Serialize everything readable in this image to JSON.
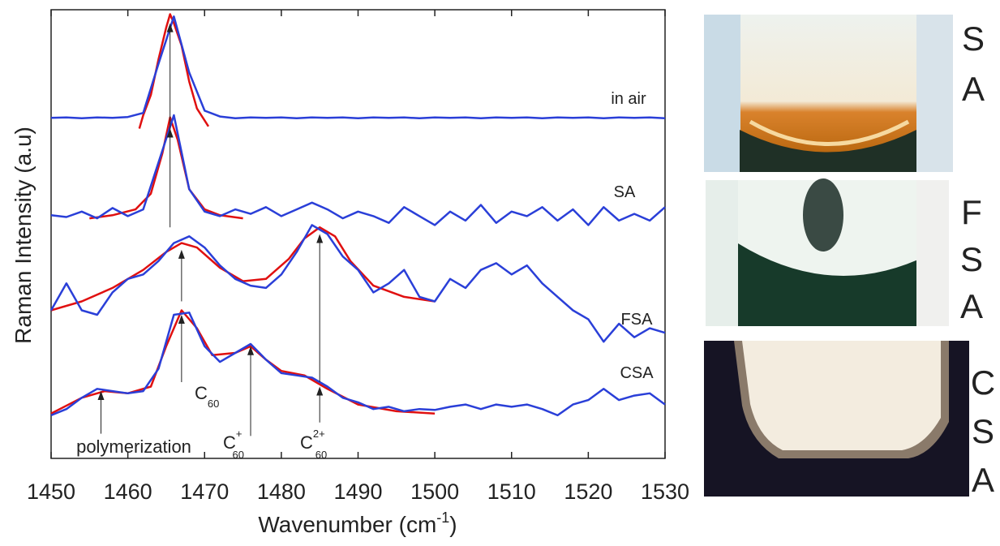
{
  "chart_data": {
    "type": "line",
    "y_label": "Raman Intensity (a.u)",
    "x_label": [
      "Wavenumber (cm",
      "-1",
      ")"
    ],
    "xlim": [
      1450,
      1530
    ],
    "ylim": [
      0,
      100
    ],
    "xticks": [
      1450,
      1460,
      1470,
      1480,
      1490,
      1500,
      1510,
      1520,
      1530
    ],
    "series": [
      {
        "name": "in air",
        "color": "#2a3fd8",
        "x": [
          1450,
          1452,
          1454,
          1456,
          1458,
          1460,
          1462,
          1464,
          1466,
          1468,
          1470,
          1472,
          1474,
          1476,
          1478,
          1480,
          1482,
          1484,
          1486,
          1488,
          1490,
          1492,
          1494,
          1496,
          1498,
          1500,
          1502,
          1504,
          1506,
          1508,
          1510,
          1512,
          1514,
          1516,
          1518,
          1520,
          1522,
          1524,
          1526,
          1528,
          1530
        ],
        "values": [
          75.9,
          76.0,
          75.8,
          76.0,
          75.9,
          76.1,
          77.0,
          88,
          98.5,
          86,
          77.5,
          76.2,
          75.8,
          76.0,
          75.9,
          76.0,
          75.8,
          76.0,
          75.9,
          76.0,
          75.8,
          76.0,
          75.9,
          76.0,
          75.8,
          76.0,
          75.9,
          76.0,
          75.8,
          76.0,
          75.9,
          76.0,
          75.8,
          76.0,
          75.9,
          76.0,
          75.8,
          76.0,
          75.9,
          76.0,
          75.8
        ],
        "fit": {
          "color": "#e01010",
          "x": [
            1461.5,
            1462,
            1463,
            1464,
            1465,
            1465.5,
            1466,
            1467,
            1468,
            1469,
            1470.5
          ],
          "values": [
            73.5,
            76.5,
            81,
            89,
            96,
            99,
            97,
            92,
            84,
            78,
            74
          ]
        }
      },
      {
        "name": "SA",
        "color": "#2a3fd8",
        "x": [
          1450,
          1452,
          1454,
          1456,
          1458,
          1460,
          1462,
          1464,
          1466,
          1468,
          1470,
          1472,
          1474,
          1476,
          1478,
          1480,
          1482,
          1484,
          1486,
          1488,
          1490,
          1492,
          1494,
          1496,
          1498,
          1500,
          1502,
          1504,
          1506,
          1508,
          1510,
          1512,
          1514,
          1516,
          1518,
          1520,
          1522,
          1524,
          1526,
          1528,
          1530
        ],
        "values": [
          54.2,
          53.8,
          55,
          53.5,
          55.8,
          54,
          55.5,
          66,
          76.5,
          60,
          55,
          54,
          55.5,
          54.5,
          56,
          54,
          55.5,
          57,
          55.5,
          53.5,
          55,
          54,
          52.5,
          56,
          54,
          52,
          55,
          53,
          56.5,
          52.5,
          55,
          54,
          56,
          53,
          55.5,
          52,
          56,
          53,
          54.5,
          53,
          56
        ],
        "fit": {
          "color": "#e01010",
          "x": [
            1455,
            1458,
            1461,
            1463,
            1464.5,
            1465.5,
            1466.5,
            1468,
            1470,
            1472,
            1475
          ],
          "values": [
            53.5,
            54.2,
            55.5,
            59,
            68,
            76,
            71,
            60,
            55.5,
            54.2,
            53.5
          ]
        }
      },
      {
        "name": "FSA",
        "color": "#2a3fd8",
        "x": [
          1450,
          1452,
          1454,
          1456,
          1458,
          1460,
          1462,
          1464,
          1466,
          1468,
          1470,
          1472,
          1474,
          1476,
          1478,
          1480,
          1482,
          1484,
          1486,
          1488,
          1490,
          1492,
          1494,
          1496,
          1498,
          1500,
          1502,
          1504,
          1506,
          1508,
          1510,
          1512,
          1514,
          1516,
          1518,
          1520,
          1522,
          1524,
          1526,
          1528,
          1530
        ],
        "values": [
          33,
          39,
          33,
          32,
          37,
          40,
          41,
          44,
          48,
          49.5,
          47,
          43,
          40,
          38.5,
          38,
          41,
          46,
          52,
          50,
          45,
          42,
          37,
          39,
          42,
          36,
          35,
          40,
          38,
          42,
          43.5,
          41,
          43,
          39,
          36,
          33,
          31,
          26,
          30,
          27,
          29,
          28
        ],
        "fit": {
          "color": "#e01010",
          "x": [
            1450,
            1454,
            1458,
            1462,
            1465,
            1467,
            1469,
            1472,
            1475,
            1478,
            1481,
            1483,
            1485,
            1487,
            1489,
            1492,
            1496,
            1500
          ],
          "values": [
            33,
            35,
            38,
            42,
            46,
            48,
            47,
            42.5,
            39.5,
            40,
            44.5,
            49,
            51.5,
            49.5,
            44,
            38.5,
            36,
            35
          ]
        }
      },
      {
        "name": "CSA",
        "color": "#2a3fd8",
        "x": [
          1450,
          1452,
          1454,
          1456,
          1458,
          1460,
          1462,
          1464,
          1466,
          1468,
          1470,
          1472,
          1474,
          1476,
          1478,
          1480,
          1482,
          1484,
          1486,
          1488,
          1490,
          1492,
          1494,
          1496,
          1498,
          1500,
          1502,
          1504,
          1506,
          1508,
          1510,
          1512,
          1514,
          1516,
          1518,
          1520,
          1522,
          1524,
          1526,
          1528,
          1530
        ],
        "values": [
          9.6,
          11,
          13.5,
          15.5,
          15,
          14.5,
          15,
          20,
          32,
          32.5,
          25,
          21.5,
          23.5,
          25.5,
          22,
          19,
          18.5,
          18,
          16,
          13.5,
          12.5,
          11,
          11.5,
          10.5,
          11,
          10.8,
          11.5,
          12,
          11,
          12,
          11.5,
          12,
          11,
          9.6,
          12,
          13,
          15.5,
          13,
          14,
          14.5,
          12
        ],
        "fit": {
          "color": "#e01010",
          "x": [
            1450,
            1454,
            1457,
            1460,
            1463,
            1465,
            1467,
            1469,
            1471,
            1474,
            1476,
            1478,
            1480,
            1483,
            1486,
            1490,
            1495,
            1500
          ],
          "values": [
            10,
            13.5,
            15,
            14.5,
            16,
            25,
            33,
            29,
            23,
            23.5,
            25,
            22,
            19.5,
            18.5,
            15.5,
            12,
            10.5,
            10
          ]
        }
      }
    ],
    "arrows": [
      {
        "x": 1465.5,
        "from": 73,
        "to": 97
      },
      {
        "x": 1465.5,
        "from": 51.5,
        "to": 73.5
      },
      {
        "x": 1467,
        "from": 35,
        "to": 46.5
      },
      {
        "x": 1467,
        "from": 17,
        "to": 32
      },
      {
        "x": 1476,
        "from": 5,
        "to": 25
      },
      {
        "x": 1485,
        "from": 17,
        "to": 50
      },
      {
        "x": 1485,
        "from": 8,
        "to": 16
      },
      {
        "x": 1456.5,
        "from": 5.5,
        "to": 15
      }
    ],
    "annotations": [
      {
        "text": "polymerization"
      },
      {
        "text": "C",
        "sub": "60"
      },
      {
        "text": "C",
        "sup": "+",
        "sub": "60"
      },
      {
        "text": "C",
        "sup": "2+",
        "sub": "60"
      }
    ]
  },
  "photos": [
    [
      "S",
      "A"
    ],
    [
      "F",
      "S",
      "A"
    ],
    [
      "C",
      "S",
      "A"
    ]
  ]
}
